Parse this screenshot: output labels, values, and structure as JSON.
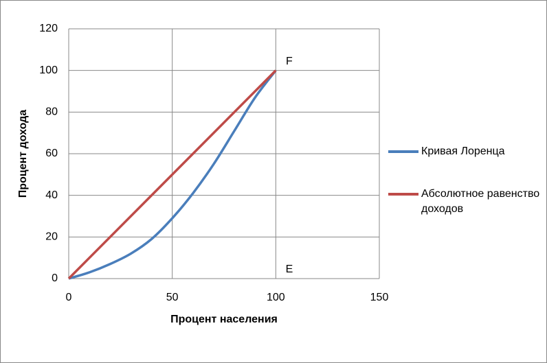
{
  "chart_data": {
    "type": "line",
    "xlabel": "Процент населения",
    "ylabel": "Процент дохода",
    "xlim": [
      0,
      150
    ],
    "xticks": [
      0,
      50,
      100,
      150
    ],
    "ylim": [
      0,
      120
    ],
    "yticks": [
      0,
      20,
      40,
      60,
      80,
      100,
      120
    ],
    "grid": true,
    "legend": "right",
    "annotations": [
      "F",
      "E"
    ],
    "series": [
      {
        "name": "Кривая Лоренца",
        "color": "#4a7ebb",
        "x": [
          0,
          10,
          20,
          30,
          40,
          50,
          60,
          70,
          80,
          90,
          100
        ],
        "values": [
          0,
          3,
          7,
          12,
          19,
          29,
          41,
          55,
          71,
          87,
          100
        ]
      },
      {
        "name": "Абсолютное равенство доходов",
        "color": "#be4b48",
        "x": [
          0,
          100
        ],
        "values": [
          0,
          100
        ]
      }
    ]
  }
}
